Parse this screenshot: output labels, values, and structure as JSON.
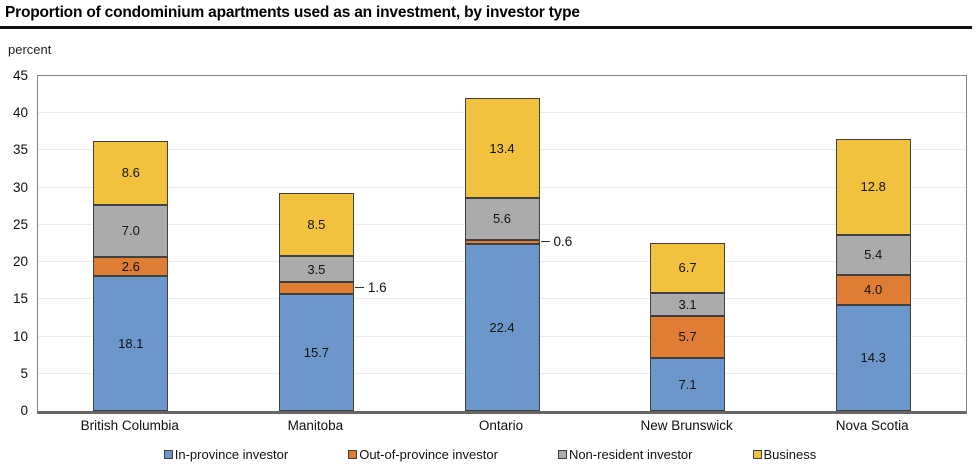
{
  "header": {
    "title": "Proportion of condominium apartments used as an investment, by investor type",
    "axis_unit_label": "percent"
  },
  "chart_data": {
    "type": "bar",
    "stacked": true,
    "title": "Proportion of condominium apartments used as an investment, by investor type",
    "ylabel": "percent",
    "xlabel": "",
    "ylim": [
      0,
      45
    ],
    "yticks": [
      0,
      5,
      10,
      15,
      20,
      25,
      30,
      35,
      40,
      45
    ],
    "grid": true,
    "legend_position": "bottom",
    "categories": [
      "British Columbia",
      "Manitoba",
      "Ontario",
      "New Brunswick",
      "Nova Scotia"
    ],
    "series": [
      {
        "name": "In-province investor",
        "color": "#6C97CB",
        "values": [
          18.1,
          15.7,
          22.4,
          7.1,
          14.3
        ]
      },
      {
        "name": "Out-of-province investor",
        "color": "#DE7D33",
        "values": [
          2.6,
          1.6,
          0.6,
          5.7,
          4.0
        ]
      },
      {
        "name": "Non-resident investor",
        "color": "#ABABAB",
        "values": [
          7.0,
          3.5,
          5.6,
          3.1,
          5.4
        ]
      },
      {
        "name": "Business",
        "color": "#F2C23E",
        "values": [
          8.6,
          8.5,
          13.4,
          6.7,
          12.8
        ]
      }
    ],
    "callouts": [
      {
        "category": "Manitoba",
        "series": "Out-of-province investor",
        "label": "1.6"
      },
      {
        "category": "Ontario",
        "series": "Out-of-province investor",
        "label": "0.6"
      }
    ]
  }
}
